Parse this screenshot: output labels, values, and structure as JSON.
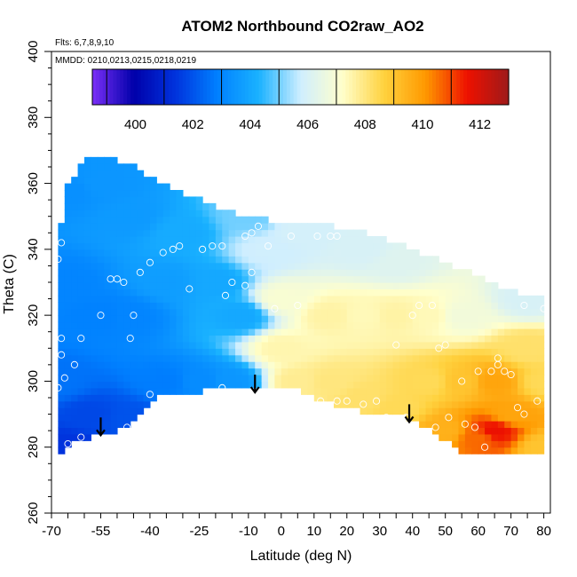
{
  "chart_data": {
    "type": "heatmap",
    "title": "ATOM2 Northbound CO2raw_AO2",
    "flights_note": "Flts: 6,7,8,9,10",
    "dates_note": "MMDD: 0210,0213,0215,0218,0219",
    "xlabel": "Latitude (deg N)",
    "ylabel": "Theta (C)",
    "xlim": [
      -70,
      82
    ],
    "ylim": [
      260,
      400
    ],
    "x_ticks": [
      -70,
      -55,
      -40,
      -25,
      -10,
      0,
      10,
      20,
      30,
      40,
      50,
      60,
      70,
      80
    ],
    "x_tick_labels": [
      "-70",
      "-55",
      "-40",
      "-25",
      "-10",
      "0",
      "10",
      "20",
      "30",
      "40",
      "50",
      "60",
      "70",
      "80"
    ],
    "y_ticks": [
      260,
      280,
      300,
      320,
      340,
      360,
      380,
      400
    ],
    "y_tick_labels": [
      "260",
      "280",
      "300",
      "320",
      "340",
      "360",
      "380",
      "400"
    ],
    "colorbar": {
      "min": 398.5,
      "max": 413,
      "ticks": [
        400,
        402,
        404,
        406,
        408,
        410,
        412
      ],
      "tick_labels": [
        "400",
        "402",
        "404",
        "406",
        "408",
        "410",
        "412"
      ],
      "colors": [
        "#7b2ff7",
        "#0000aa",
        "#0033dd",
        "#0080ff",
        "#1ab2ff",
        "#cfeeff",
        "#ffffcc",
        "#ffd23f",
        "#ff9900",
        "#ee1100",
        "#9e1a1a"
      ]
    },
    "domain_top": [
      [
        -68,
        343
      ],
      [
        -65,
        360
      ],
      [
        -61,
        365
      ],
      [
        -58,
        368
      ],
      [
        -52,
        368
      ],
      [
        -45,
        365
      ],
      [
        -35,
        359
      ],
      [
        -25,
        355
      ],
      [
        -15,
        351
      ],
      [
        -5,
        349
      ],
      [
        5,
        347
      ],
      [
        15,
        347
      ],
      [
        25,
        345
      ],
      [
        35,
        342
      ],
      [
        45,
        338
      ],
      [
        55,
        334
      ],
      [
        65,
        329
      ],
      [
        72,
        327
      ],
      [
        80,
        325
      ]
    ],
    "domain_bottom": [
      [
        -68,
        278
      ],
      [
        -66,
        280
      ],
      [
        -58,
        283
      ],
      [
        -46,
        286
      ],
      [
        -37,
        296
      ],
      [
        -25,
        297
      ],
      [
        -10,
        298
      ],
      [
        2,
        299
      ],
      [
        12,
        294
      ],
      [
        25,
        291
      ],
      [
        35,
        290
      ],
      [
        45,
        286
      ],
      [
        55,
        278
      ],
      [
        80,
        278
      ]
    ],
    "field_points": [
      [
        -68,
        300,
        402.6
      ],
      [
        -65,
        280,
        401.4
      ],
      [
        -66,
        330,
        403.0
      ],
      [
        -64,
        358,
        403.3
      ],
      [
        -58,
        290,
        401.8
      ],
      [
        -55,
        320,
        402.9
      ],
      [
        -55,
        360,
        403.5
      ],
      [
        -46,
        289,
        402.0
      ],
      [
        -46,
        320,
        403.0
      ],
      [
        -46,
        350,
        403.6
      ],
      [
        -35,
        300,
        402.8
      ],
      [
        -35,
        330,
        403.7
      ],
      [
        -30,
        345,
        404.1
      ],
      [
        -25,
        300,
        403.2
      ],
      [
        -20,
        330,
        404.0
      ],
      [
        -15,
        300,
        403.5
      ],
      [
        -10,
        350,
        405.0
      ],
      [
        -12,
        320,
        404.0
      ],
      [
        -5,
        340,
        405.8
      ],
      [
        0,
        310,
        407.5
      ],
      [
        0,
        325,
        407.0
      ],
      [
        5,
        300,
        407.8
      ],
      [
        5,
        345,
        405.9
      ],
      [
        15,
        300,
        408.0
      ],
      [
        15,
        320,
        407.6
      ],
      [
        25,
        295,
        408.2
      ],
      [
        25,
        320,
        407.4
      ],
      [
        25,
        340,
        406.0
      ],
      [
        35,
        292,
        408.4
      ],
      [
        35,
        320,
        407.6
      ],
      [
        35,
        336,
        406.2
      ],
      [
        45,
        300,
        408.4
      ],
      [
        45,
        320,
        407.4
      ],
      [
        50,
        285,
        409.5
      ],
      [
        55,
        300,
        409.0
      ],
      [
        55,
        320,
        406.8
      ],
      [
        60,
        283,
        410.6
      ],
      [
        65,
        285,
        411.6
      ],
      [
        65,
        300,
        409.8
      ],
      [
        70,
        290,
        409.8
      ],
      [
        75,
        310,
        408.2
      ],
      [
        75,
        325,
        406.0
      ],
      [
        80,
        280,
        409.0
      ],
      [
        80,
        300,
        408.4
      ]
    ],
    "observations": [
      [
        -67,
        342
      ],
      [
        -68,
        337
      ],
      [
        -67,
        313
      ],
      [
        -67,
        308
      ],
      [
        -68,
        298
      ],
      [
        -66,
        301
      ],
      [
        -63,
        305
      ],
      [
        -61,
        313
      ],
      [
        -55,
        320
      ],
      [
        -45,
        320
      ],
      [
        -46,
        313
      ],
      [
        -43,
        333
      ],
      [
        -40,
        336
      ],
      [
        -36,
        339
      ],
      [
        -33,
        340
      ],
      [
        -31,
        341
      ],
      [
        -28,
        328
      ],
      [
        -24,
        340
      ],
      [
        -21,
        341
      ],
      [
        -18,
        341
      ],
      [
        -17,
        326
      ],
      [
        -15,
        330
      ],
      [
        -11,
        344
      ],
      [
        -9,
        345
      ],
      [
        -7,
        347
      ],
      [
        -4,
        341
      ],
      [
        -11,
        329
      ],
      [
        -9,
        333
      ],
      [
        -2,
        322
      ],
      [
        3,
        344
      ],
      [
        5,
        323
      ],
      [
        11,
        344
      ],
      [
        15,
        344
      ],
      [
        17,
        344
      ],
      [
        -52,
        331
      ],
      [
        -50,
        331
      ],
      [
        -48,
        330
      ],
      [
        -40,
        296
      ],
      [
        -18,
        298
      ],
      [
        -65,
        281
      ],
      [
        -61,
        283
      ],
      [
        -47,
        286
      ],
      [
        12,
        294
      ],
      [
        17,
        294
      ],
      [
        20,
        294
      ],
      [
        25,
        293
      ],
      [
        29,
        294
      ],
      [
        32,
        289
      ],
      [
        38,
        289
      ],
      [
        47,
        286
      ],
      [
        51,
        289
      ],
      [
        56,
        287
      ],
      [
        59,
        286
      ],
      [
        62,
        280
      ],
      [
        64,
        303
      ],
      [
        66,
        305
      ],
      [
        68,
        303
      ],
      [
        70,
        302
      ],
      [
        72,
        292
      ],
      [
        74,
        290
      ],
      [
        78,
        294
      ],
      [
        80,
        322
      ],
      [
        74,
        323
      ],
      [
        66,
        307
      ],
      [
        60,
        303
      ],
      [
        55,
        300
      ],
      [
        48,
        310
      ],
      [
        50,
        311
      ],
      [
        42,
        323
      ],
      [
        46,
        323
      ],
      [
        40,
        320
      ],
      [
        35,
        311
      ]
    ],
    "arrows": [
      [
        -55,
        289
      ],
      [
        -8,
        302
      ],
      [
        39,
        293
      ]
    ]
  }
}
